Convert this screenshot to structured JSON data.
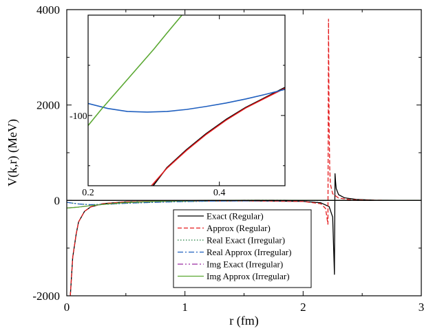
{
  "chart_data": [
    {
      "type": "line",
      "xlabel": "r (fm)",
      "ylabel": "V(k,r) (MeV)",
      "xlim": [
        0,
        3
      ],
      "ylim": [
        -2000,
        4000
      ],
      "x_ticks": [
        "0",
        "1",
        "2",
        "3"
      ],
      "y_ticks": [
        "-2000",
        "0",
        "2000",
        "4000"
      ],
      "legend_position": "bottom-center",
      "series": [
        {
          "name": "Exact (Regular)",
          "color": "#000000",
          "style": "solid",
          "x": [
            0.03,
            0.05,
            0.08,
            0.1,
            0.15,
            0.2,
            0.3,
            0.5,
            1.0,
            1.5,
            2.0,
            2.15,
            2.22,
            2.25,
            2.265,
            2.27,
            2.275,
            2.28,
            2.3,
            2.35,
            2.45,
            2.6,
            2.8,
            3.0
          ],
          "y": [
            -2000,
            -1200,
            -700,
            -450,
            -230,
            -140,
            -70,
            -30,
            -12,
            -10,
            -20,
            -50,
            -130,
            -350,
            -1550,
            560,
            380,
            250,
            120,
            55,
            20,
            6,
            2,
            0
          ]
        },
        {
          "name": "Approx (Regular)",
          "color": "#e41a1c",
          "style": "dashed",
          "x": [
            0.03,
            0.05,
            0.08,
            0.1,
            0.15,
            0.2,
            0.3,
            0.5,
            1.0,
            1.5,
            2.0,
            2.15,
            2.19,
            2.21,
            2.215,
            2.22,
            2.225,
            2.23,
            2.25,
            2.3,
            2.4,
            2.6,
            2.8,
            3.0
          ],
          "y": [
            -2000,
            -1200,
            -700,
            -450,
            -230,
            -140,
            -70,
            -30,
            -12,
            -10,
            -22,
            -70,
            -170,
            -500,
            3800,
            1600,
            700,
            350,
            140,
            50,
            15,
            5,
            1,
            0
          ]
        },
        {
          "name": "Real Exact (Irregular)",
          "color": "#1a7a3a",
          "style": "dotted",
          "x": [
            0,
            0.1,
            0.2,
            0.35,
            0.5,
            0.8,
            1.2,
            1.6,
            2.0,
            2.5,
            3.0
          ],
          "y": [
            -40,
            -75,
            -90,
            -80,
            -60,
            -35,
            -15,
            -6,
            -2,
            0,
            0
          ]
        },
        {
          "name": "Real Approx (Irregular)",
          "color": "#1f5fbf",
          "style": "dashdot",
          "x": [
            0,
            0.1,
            0.2,
            0.35,
            0.5,
            0.8,
            1.2,
            1.6,
            2.0,
            2.5,
            3.0
          ],
          "y": [
            -40,
            -75,
            -90,
            -80,
            -60,
            -35,
            -15,
            -6,
            -2,
            0,
            0
          ]
        },
        {
          "name": "Img Exact (Irregular)",
          "color": "#9a2aa0",
          "style": "dashdotdot",
          "x": [
            0,
            0.1,
            0.2,
            0.35,
            0.5,
            0.8,
            1.2,
            1.6,
            2.0,
            2.5,
            3.0
          ],
          "y": [
            -160,
            -140,
            -110,
            -75,
            -45,
            -15,
            0,
            5,
            3,
            1,
            0
          ]
        },
        {
          "name": "Img Approx (Irregular)",
          "color": "#5aa832",
          "style": "solid",
          "x": [
            0,
            0.1,
            0.2,
            0.35,
            0.5,
            0.8,
            1.2,
            1.6,
            2.0,
            2.5,
            3.0
          ],
          "y": [
            -160,
            -140,
            -110,
            -75,
            -45,
            -15,
            0,
            5,
            3,
            1,
            0
          ]
        }
      ]
    },
    {
      "type": "line",
      "position": "inset",
      "xlim": [
        0.2,
        0.5
      ],
      "ylim": [
        -135,
        -50
      ],
      "x_ticks": [
        "0.2",
        "0.4"
      ],
      "y_ticks": [
        "-100"
      ],
      "series": [
        {
          "name": "Exact (Regular)",
          "color": "#000000",
          "x": [
            0.2992,
            0.32,
            0.35,
            0.38,
            0.41,
            0.44,
            0.47,
            0.5
          ],
          "y": [
            -135,
            -126,
            -117,
            -109,
            -102,
            -96,
            -91,
            -86
          ]
        },
        {
          "name": "Approx (Regular)",
          "color": "#e41a1c",
          "x": [
            0.2965,
            0.32,
            0.35,
            0.38,
            0.41,
            0.44,
            0.47,
            0.5
          ],
          "y": [
            -135,
            -126.3,
            -117.4,
            -109.4,
            -102.4,
            -96.3,
            -91.3,
            -86.4
          ]
        },
        {
          "name": "Real Approx (Irregular)",
          "color": "#1f5fbf",
          "x": [
            0.2,
            0.23,
            0.26,
            0.29,
            0.32,
            0.35,
            0.38,
            0.41,
            0.44,
            0.47,
            0.5
          ],
          "y": [
            -94,
            -96.5,
            -98,
            -98.3,
            -98,
            -97,
            -95.5,
            -93.8,
            -91.8,
            -89.5,
            -87
          ]
        },
        {
          "name": "Img Approx (Irregular)",
          "color": "#5aa832",
          "x": [
            0.2,
            0.22,
            0.24,
            0.26,
            0.28,
            0.3,
            0.32,
            0.343
          ],
          "y": [
            -105,
            -97,
            -89.5,
            -82,
            -74.5,
            -67,
            -59,
            -50
          ]
        }
      ]
    }
  ]
}
